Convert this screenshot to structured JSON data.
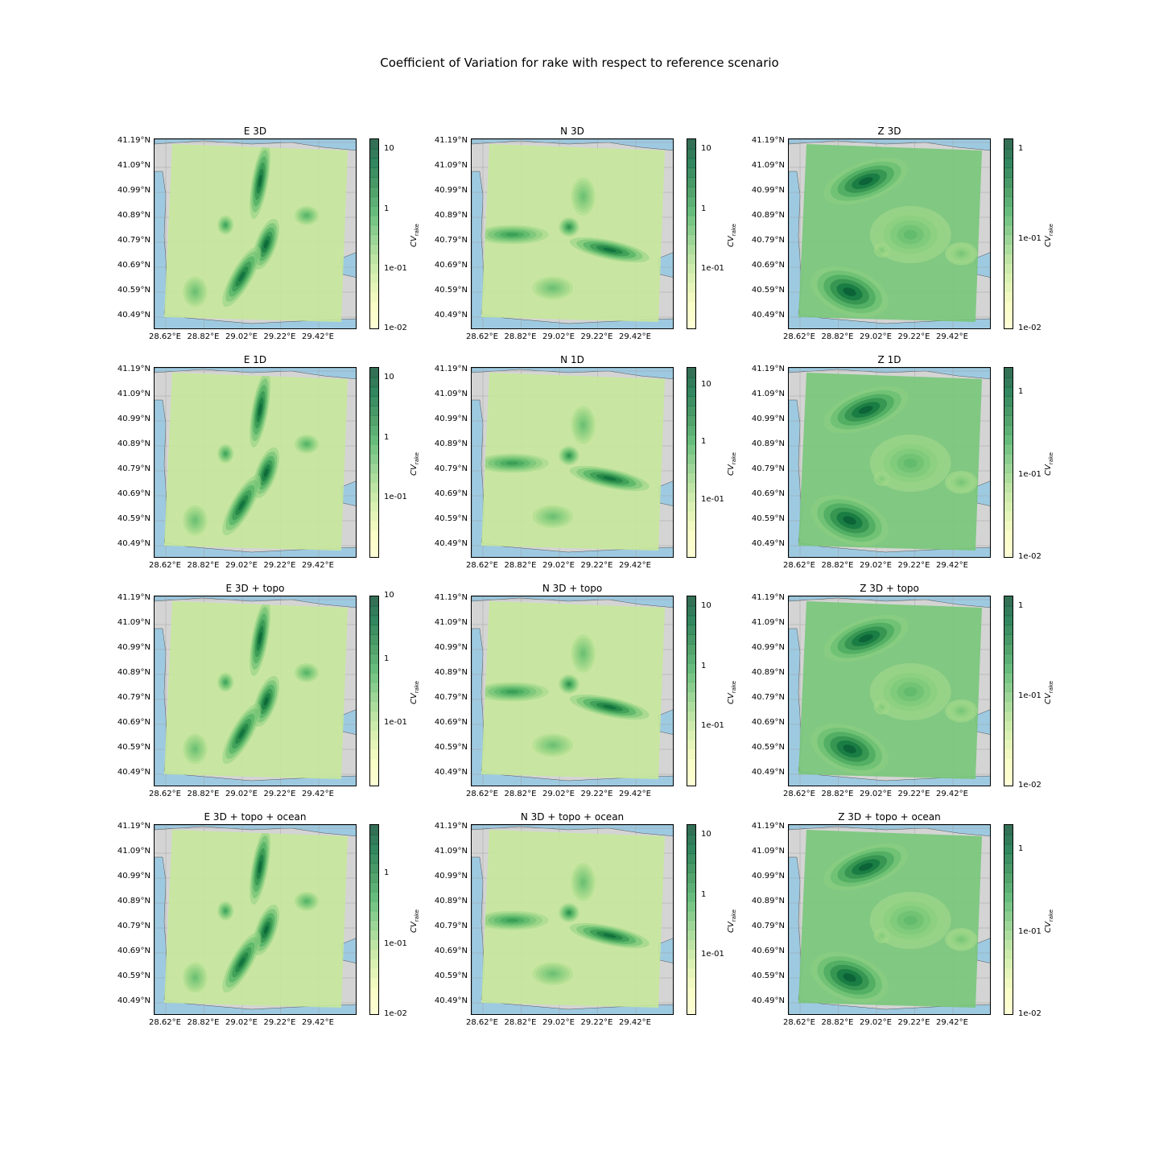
{
  "chart_data": {
    "type": "heatmap",
    "title": "Coefficient of Variation for rake with respect to reference scenario",
    "x_ticks": [
      "28.62°E",
      "28.82°E",
      "29.02°E",
      "29.22°E",
      "29.42°E"
    ],
    "y_ticks": [
      "41.19°N",
      "41.09°N",
      "40.99°N",
      "40.89°N",
      "40.79°N",
      "40.69°N",
      "40.59°N",
      "40.49°N"
    ],
    "colorbar_label": "CV",
    "colorbar_label_sub": "rake",
    "scale": "log",
    "colors": {
      "low": "#ffffcc",
      "high": "#004529",
      "land": "#d4d4d4",
      "water": "#9ecae1",
      "grid": "#999999"
    },
    "panels": [
      {
        "title": "E 3D",
        "component": "E",
        "colorbar_ticks": [
          "10",
          "1",
          "1e-01",
          "1e-02"
        ],
        "cmax": 15
      },
      {
        "title": "N 3D",
        "component": "N",
        "colorbar_ticks": [
          "10",
          "1",
          "1e-01"
        ],
        "cmax": 15
      },
      {
        "title": "Z 3D",
        "component": "Z",
        "colorbar_ticks": [
          "1",
          "1e-01",
          "1e-02"
        ],
        "cmax": 1.3
      },
      {
        "title": "E 1D",
        "component": "E",
        "colorbar_ticks": [
          "10",
          "1",
          "1e-01"
        ],
        "cmax": 15
      },
      {
        "title": "N 1D",
        "component": "N",
        "colorbar_ticks": [
          "10",
          "1",
          "1e-01"
        ],
        "cmax": 20
      },
      {
        "title": "Z 1D",
        "component": "Z",
        "colorbar_ticks": [
          "1",
          "1e-01",
          "1e-02"
        ],
        "cmax": 2
      },
      {
        "title": "E 3D + topo",
        "component": "E",
        "colorbar_ticks": [
          "10",
          "1",
          "1e-01"
        ],
        "cmax": 10
      },
      {
        "title": "N 3D + topo",
        "component": "N",
        "colorbar_ticks": [
          "10",
          "1",
          "1e-01"
        ],
        "cmax": 15
      },
      {
        "title": "Z 3D + topo",
        "component": "Z",
        "colorbar_ticks": [
          "1",
          "1e-01",
          "1e-02"
        ],
        "cmax": 1.3
      },
      {
        "title": "E 3D + topo + ocean",
        "component": "E",
        "colorbar_ticks": [
          "1",
          "1e-01",
          "1e-02"
        ],
        "cmax": 5
      },
      {
        "title": "N 3D + topo + ocean",
        "component": "N",
        "colorbar_ticks": [
          "10",
          "1",
          "1e-01"
        ],
        "cmax": 15
      },
      {
        "title": "Z 3D + topo + ocean",
        "component": "Z",
        "colorbar_ticks": [
          "1",
          "1e-01",
          "1e-02"
        ],
        "cmax": 2
      }
    ]
  }
}
